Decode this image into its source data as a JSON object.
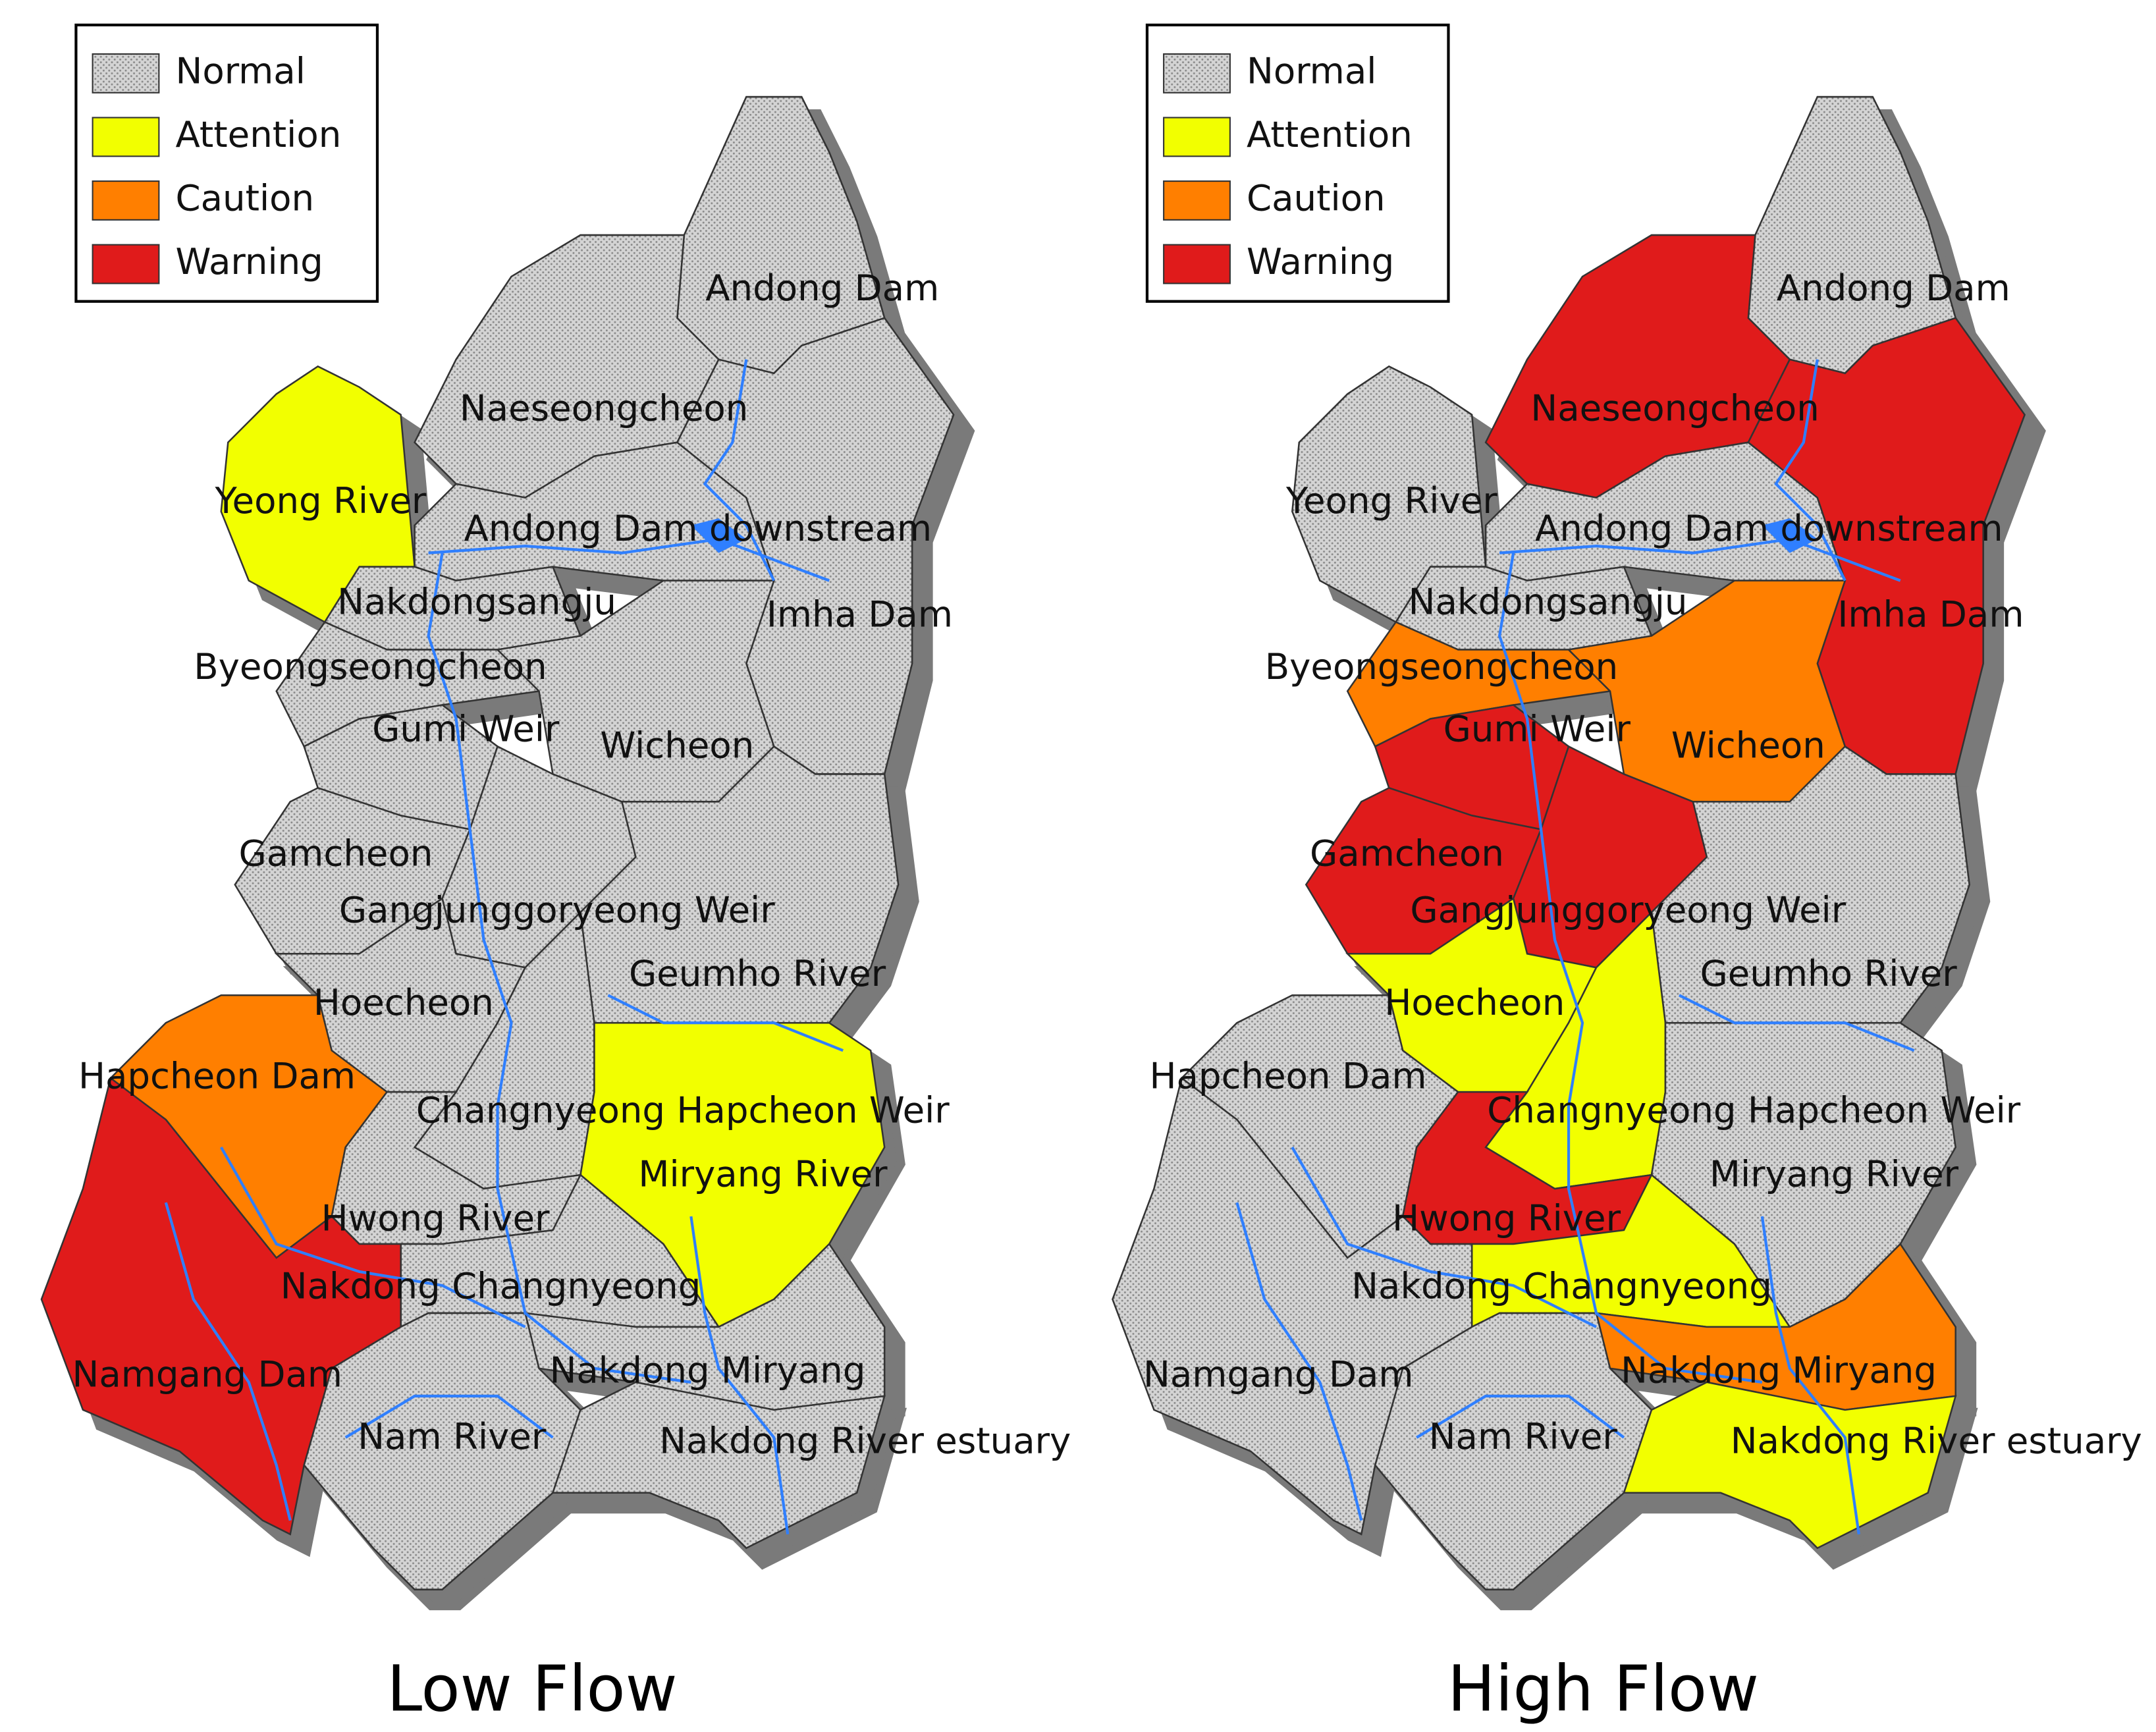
{
  "legend": [
    {
      "label": "Normal",
      "color": "#d4d4d4"
    },
    {
      "label": "Attention",
      "color": "#f2ff00"
    },
    {
      "label": "Caution",
      "color": "#ff7f00"
    },
    {
      "label": "Warning",
      "color": "#e01b1b"
    }
  ],
  "maps": [
    {
      "title": "Low Flow",
      "regions": [
        {
          "label": "Andong Dam",
          "status": "Normal"
        },
        {
          "label": "Naeseongcheon",
          "status": "Normal"
        },
        {
          "label": "Yeong River",
          "status": "Attention"
        },
        {
          "label": "Andong Dam downstream",
          "status": "Normal"
        },
        {
          "label": "Imha Dam",
          "status": "Normal"
        },
        {
          "label": "Nakdongsangju",
          "status": "Normal"
        },
        {
          "label": "Byeongseongcheon",
          "status": "Normal"
        },
        {
          "label": "Gumi Weir",
          "status": "Normal"
        },
        {
          "label": "Wicheon",
          "status": "Normal"
        },
        {
          "label": "Gamcheon",
          "status": "Normal"
        },
        {
          "label": "Gangjunggoryeong Weir",
          "status": "Normal"
        },
        {
          "label": "Geumho River",
          "status": "Normal"
        },
        {
          "label": "Hoecheon",
          "status": "Normal"
        },
        {
          "label": "Hapcheon Dam",
          "status": "Caution"
        },
        {
          "label": "Changnyeong Hapcheon Weir",
          "status": "Normal"
        },
        {
          "label": "Miryang River",
          "status": "Attention"
        },
        {
          "label": "Hwong River",
          "status": "Normal"
        },
        {
          "label": "Nakdong Changnyeong",
          "status": "Normal"
        },
        {
          "label": "Namgang Dam",
          "status": "Warning"
        },
        {
          "label": "Nakdong Miryang",
          "status": "Normal"
        },
        {
          "label": "Nam River",
          "status": "Normal"
        },
        {
          "label": "Nakdong River estuary",
          "status": "Normal"
        }
      ]
    },
    {
      "title": "High Flow",
      "regions": [
        {
          "label": "Andong Dam",
          "status": "Normal"
        },
        {
          "label": "Naeseongcheon",
          "status": "Warning"
        },
        {
          "label": "Yeong River",
          "status": "Normal"
        },
        {
          "label": "Andong Dam downstream",
          "status": "Normal"
        },
        {
          "label": "Imha Dam",
          "status": "Warning"
        },
        {
          "label": "Nakdongsangju",
          "status": "Normal"
        },
        {
          "label": "Byeongseongcheon",
          "status": "Caution"
        },
        {
          "label": "Gumi Weir",
          "status": "Warning"
        },
        {
          "label": "Wicheon",
          "status": "Caution"
        },
        {
          "label": "Gamcheon",
          "status": "Warning"
        },
        {
          "label": "Gangjunggoryeong Weir",
          "status": "Warning"
        },
        {
          "label": "Geumho River",
          "status": "Normal"
        },
        {
          "label": "Hoecheon",
          "status": "Attention"
        },
        {
          "label": "Hapcheon Dam",
          "status": "Normal"
        },
        {
          "label": "Changnyeong Hapcheon Weir",
          "status": "Attention"
        },
        {
          "label": "Miryang River",
          "status": "Normal"
        },
        {
          "label": "Hwong River",
          "status": "Warning"
        },
        {
          "label": "Nakdong Changnyeong",
          "status": "Attention"
        },
        {
          "label": "Namgang Dam",
          "status": "Normal"
        },
        {
          "label": "Nakdong Miryang",
          "status": "Caution"
        },
        {
          "label": "Nam River",
          "status": "Normal"
        },
        {
          "label": "Nakdong River estuary",
          "status": "Attention"
        }
      ]
    }
  ]
}
